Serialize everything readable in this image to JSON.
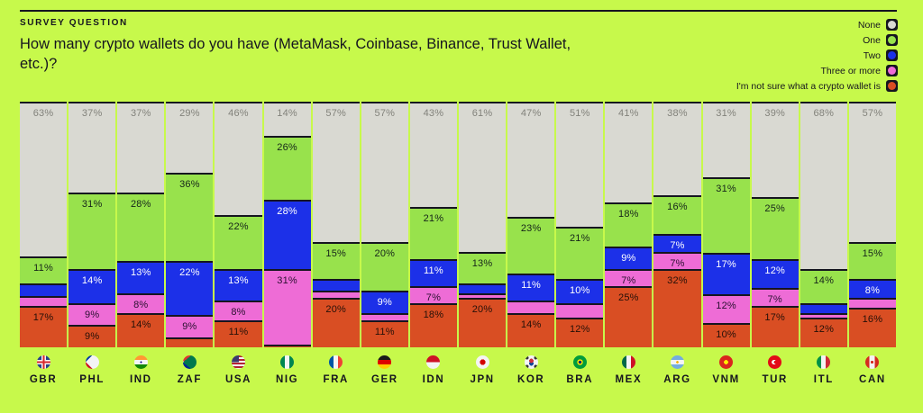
{
  "page": {
    "background_color": "#c7f94b",
    "ink_color": "#15151f"
  },
  "header": {
    "eyebrow": "SURVEY QUESTION",
    "question": "How many crypto wallets do you have (MetaMask, Coinbase, Binance, Trust Wallet, etc.)?"
  },
  "legend": {
    "items": [
      {
        "label": "None",
        "color": "#d9d9d2"
      },
      {
        "label": "One",
        "color": "#98e24c"
      },
      {
        "label": "Two",
        "color": "#1c30e8"
      },
      {
        "label": "Three or more",
        "color": "#ee6cd6"
      },
      {
        "label": "I'm not sure what a crypto wallet is",
        "color": "#d94e23"
      }
    ]
  },
  "chart_data": {
    "type": "bar",
    "stacked": true,
    "orientation": "vertical",
    "unit": "%",
    "label_min_visible": 7,
    "note": "Segments smaller than 7% carry no visible data label in the image; their values are estimated from segment heights so each column totals ~100%.",
    "categories": [
      "GBR",
      "PHL",
      "IND",
      "ZAF",
      "USA",
      "NIG",
      "FRA",
      "GER",
      "IDN",
      "JPN",
      "KOR",
      "BRA",
      "MEX",
      "ARG",
      "VNM",
      "TUR",
      "ITL",
      "CAN"
    ],
    "series": [
      {
        "name": "None",
        "color": "#d9d9d2",
        "label_color": "#82827b",
        "values": [
          63,
          37,
          37,
          29,
          46,
          14,
          57,
          57,
          43,
          61,
          47,
          51,
          41,
          38,
          31,
          39,
          68,
          57
        ]
      },
      {
        "name": "One",
        "color": "#98e24c",
        "label_color": "#15241a",
        "values": [
          11,
          31,
          28,
          36,
          22,
          26,
          15,
          20,
          21,
          13,
          23,
          21,
          18,
          16,
          31,
          25,
          14,
          15
        ]
      },
      {
        "name": "Two",
        "color": "#1c30e8",
        "label_color": "#ffffff",
        "values": [
          5,
          14,
          13,
          22,
          13,
          28,
          5,
          9,
          11,
          4,
          11,
          10,
          9,
          7,
          17,
          12,
          4,
          8
        ]
      },
      {
        "name": "Three or more",
        "color": "#ee6cd6",
        "label_color": "#2a1030",
        "values": [
          4,
          9,
          8,
          9,
          8,
          31,
          3,
          3,
          7,
          2,
          5,
          6,
          7,
          7,
          12,
          7,
          2,
          4
        ]
      },
      {
        "name": "I'm not sure what a crypto wallet is",
        "color": "#d94e23",
        "label_color": "#241008",
        "values": [
          17,
          9,
          14,
          4,
          11,
          1,
          20,
          11,
          18,
          20,
          14,
          12,
          25,
          32,
          10,
          17,
          12,
          16
        ]
      }
    ]
  }
}
